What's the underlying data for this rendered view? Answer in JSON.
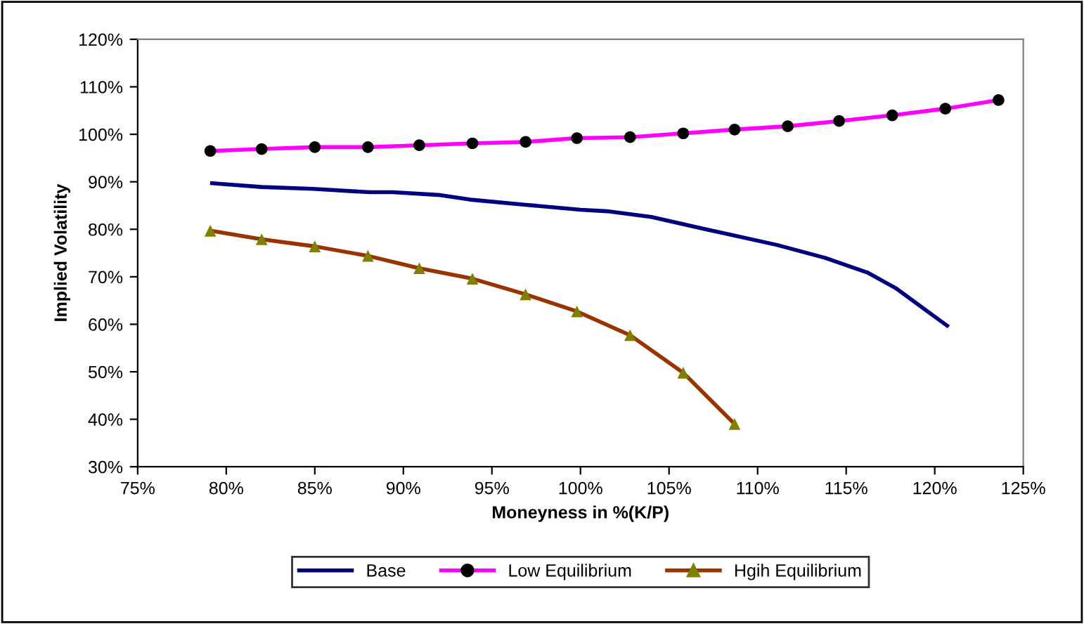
{
  "chart_data": {
    "type": "line",
    "xlabel": "Moneyness in %(K/P)",
    "ylabel": "Implied Volatility",
    "xlim": [
      75,
      125
    ],
    "ylim": [
      30,
      120
    ],
    "xticks": [
      {
        "value": 75,
        "label": "75%"
      },
      {
        "value": 80,
        "label": "80%"
      },
      {
        "value": 85,
        "label": "85%"
      },
      {
        "value": 90,
        "label": "90%"
      },
      {
        "value": 95,
        "label": "95%"
      },
      {
        "value": 100,
        "label": "100%"
      },
      {
        "value": 105,
        "label": "105%"
      },
      {
        "value": 110,
        "label": "110%"
      },
      {
        "value": 115,
        "label": "115%"
      },
      {
        "value": 120,
        "label": "120%"
      },
      {
        "value": 125,
        "label": "125%"
      }
    ],
    "yticks": [
      {
        "value": 30,
        "label": "30%"
      },
      {
        "value": 40,
        "label": "40%"
      },
      {
        "value": 50,
        "label": "50%"
      },
      {
        "value": 60,
        "label": "60%"
      },
      {
        "value": 70,
        "label": "70%"
      },
      {
        "value": 80,
        "label": "80%"
      },
      {
        "value": 90,
        "label": "90%"
      },
      {
        "value": 100,
        "label": "100%"
      },
      {
        "value": 110,
        "label": "110%"
      },
      {
        "value": 120,
        "label": "120%"
      }
    ],
    "grid": false,
    "legend": "bottom",
    "line_style": "solid",
    "series": [
      {
        "name": "Base",
        "color": "#000080",
        "marker": "none",
        "x": [
          79.2,
          82.0,
          84.9,
          88.1,
          89.4,
          92.1,
          93.9,
          96.8,
          100.0,
          101.5,
          104.0,
          107.2,
          111.1,
          113.8,
          116.2,
          117.8,
          119.3,
          120.7
        ],
        "values": [
          89.7,
          88.9,
          88.5,
          87.8,
          87.8,
          87.2,
          86.2,
          85.2,
          84.1,
          83.8,
          82.6,
          79.9,
          76.7,
          74.0,
          70.9,
          67.6,
          63.5,
          59.7
        ]
      },
      {
        "name": "Low Equilibrium",
        "color": "#ff00ff",
        "marker": "circle",
        "colors": [
          "#000000",
          "#000000",
          "#000000",
          "#000000",
          "#000000",
          "#000000",
          "#000000",
          "#000000",
          "#000000",
          "#000000",
          "#000000",
          "#000000",
          "#000000",
          "#000000",
          "#000000",
          "#000000"
        ],
        "x": [
          79.1,
          82.0,
          85.0,
          88.0,
          90.9,
          93.9,
          96.9,
          99.8,
          102.8,
          105.8,
          108.7,
          111.7,
          114.6,
          117.6,
          120.6,
          123.6
        ],
        "values": [
          96.5,
          96.9,
          97.3,
          97.3,
          97.7,
          98.1,
          98.4,
          99.2,
          99.4,
          100.2,
          101.0,
          101.7,
          102.8,
          104.0,
          105.4,
          107.2
        ]
      },
      {
        "name": "Hgih Equilibrium",
        "color": "#993300",
        "marker": "triangle",
        "colors": [
          "#808000",
          "#808000",
          "#808000",
          "#808000",
          "#808000",
          "#808000",
          "#808000",
          "#808000",
          "#808000",
          "#808000",
          "#808000"
        ],
        "x": [
          79.1,
          82.0,
          85.0,
          88.0,
          90.9,
          93.9,
          96.9,
          99.8,
          102.8,
          105.8,
          108.7
        ],
        "values": [
          79.7,
          77.9,
          76.4,
          74.4,
          71.8,
          69.6,
          66.3,
          62.7,
          57.7,
          49.8,
          39.0
        ]
      }
    ]
  }
}
